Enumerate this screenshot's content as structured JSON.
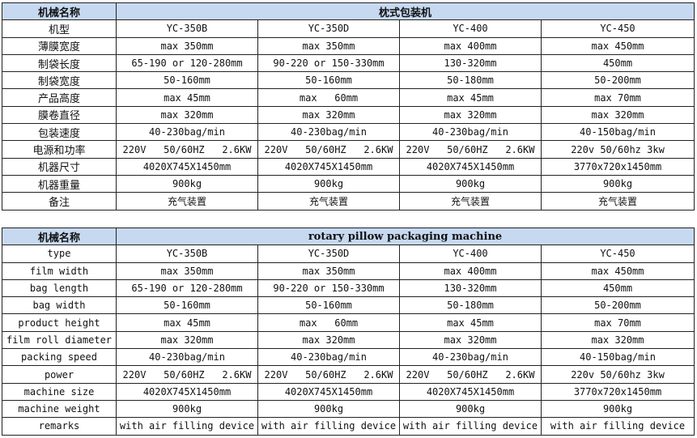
{
  "header_bg": "#c6d9f1",
  "tables": [
    {
      "corner": "机械名称",
      "title": "枕式包装机",
      "rows": [
        [
          "机型",
          "YC-350B",
          "YC-350D",
          "YC-400",
          "YC-450"
        ],
        [
          "薄膜宽度",
          "max 350mm",
          "max 350mm",
          "max 400mm",
          "max 450mm"
        ],
        [
          "制袋长度",
          "65-190 or 120-280mm",
          "90-220 or 150-330mm",
          "130-320mm",
          "450mm"
        ],
        [
          "制袋宽度",
          "50-160mm",
          "50-160mm",
          "50-180mm",
          "50-200mm"
        ],
        [
          "产品高度",
          "max 45mm",
          "max   60mm",
          "max 45mm",
          "max 70mm"
        ],
        [
          "膜卷直径",
          "max 320mm",
          "max 320mm",
          "max 320mm",
          "max 320mm"
        ],
        [
          "包装速度",
          "40-230bag/min",
          "40-230bag/min",
          "40-230bag/min",
          "40-150bag/min"
        ],
        [
          "电源和功率",
          "220V   50/60HZ   2.6KW",
          "220V   50/60HZ   2.6KW",
          "220V   50/60HZ   2.6KW",
          "220v 50/60hz 3kw"
        ],
        [
          "机器尺寸",
          "4020X745X1450mm",
          "4020X745X1450mm",
          "4020X745X1450mm",
          "3770x720x1450mm"
        ],
        [
          "机器重量",
          "900kg",
          "900kg",
          "900kg",
          "900kg"
        ],
        [
          "备注",
          "充气装置",
          "充气装置",
          "充气装置",
          "充气装置"
        ]
      ]
    },
    {
      "corner": "机械名称",
      "title": "rotary pillow packaging machine",
      "rows": [
        [
          "type",
          "YC-350B",
          "YC-350D",
          "YC-400",
          "YC-450"
        ],
        [
          "film width",
          "max 350mm",
          "max 350mm",
          "max 400mm",
          "max 450mm"
        ],
        [
          "bag length",
          "65-190 or 120-280mm",
          "90-220 or 150-330mm",
          "130-320mm",
          "450mm"
        ],
        [
          "bag width",
          "50-160mm",
          "50-160mm",
          "50-180mm",
          "50-200mm"
        ],
        [
          "product height",
          "max 45mm",
          "max   60mm",
          "max 45mm",
          "max 70mm"
        ],
        [
          "film roll diameter",
          "max 320mm",
          "max 320mm",
          "max 320mm",
          "max 320mm"
        ],
        [
          "packing speed",
          "40-230bag/min",
          "40-230bag/min",
          "40-230bag/min",
          "40-150bag/min"
        ],
        [
          "power",
          "220V   50/60HZ   2.6KW",
          "220V   50/60HZ   2.6KW",
          "220V   50/60HZ   2.6KW",
          "220v 50/60hz 3kw"
        ],
        [
          "machine size",
          "4020X745X1450mm",
          "4020X745X1450mm",
          "4020X745X1450mm",
          "3770x720x1450mm"
        ],
        [
          "machine weight",
          "900kg",
          "900kg",
          "900kg",
          "900kg"
        ],
        [
          "remarks",
          "with air filling device",
          "with air filling device",
          "with air filling device",
          "with air filling device"
        ]
      ]
    }
  ]
}
